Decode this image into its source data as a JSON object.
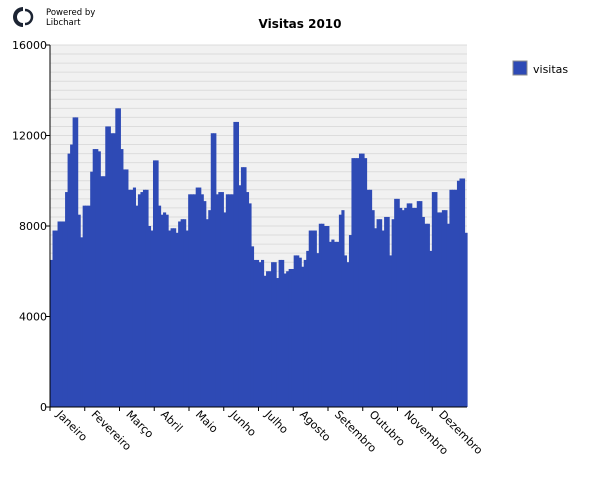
{
  "branding": {
    "line1": "Powered by",
    "line2": "Libchart"
  },
  "chart_data": {
    "type": "bar",
    "title": "Visitas 2010",
    "xlabel": "",
    "ylabel": "",
    "ylim": [
      0,
      16000
    ],
    "yticks": [
      0,
      4000,
      8000,
      12000,
      16000
    ],
    "months": [
      "Janeiro",
      "Fevereiro",
      "Março",
      "Abril",
      "Maio",
      "Junho",
      "Julho",
      "Agosto",
      "Setembro",
      "Outubro",
      "Novembro",
      "Dezembro"
    ],
    "legend": "top-right",
    "grid": true,
    "colors": {
      "bar": "#2e4ab5",
      "grid": "#dcdcdc",
      "background": "#f1f1f1",
      "legend_swatch": "#2e4ab5"
    },
    "series": [
      {
        "name": "visitas",
        "values": [
          6500,
          7800,
          7800,
          8200,
          8200,
          8200,
          9500,
          11200,
          11600,
          12800,
          12800,
          8500,
          7500,
          8900,
          8900,
          8900,
          10400,
          11400,
          11400,
          11300,
          10200,
          10200,
          12400,
          12400,
          12100,
          12100,
          13200,
          13200,
          11400,
          10500,
          10500,
          9600,
          9600,
          9700,
          8900,
          9400,
          9500,
          9600,
          9600,
          8000,
          7800,
          10900,
          10900,
          8900,
          8500,
          8600,
          8500,
          7800,
          7900,
          7900,
          7700,
          8200,
          8300,
          8300,
          7800,
          9400,
          9400,
          9400,
          9700,
          9700,
          9400,
          9100,
          8300,
          8700,
          12100,
          12100,
          9400,
          9500,
          9500,
          8600,
          9400,
          9400,
          9400,
          12600,
          12600,
          9800,
          10600,
          10600,
          9500,
          9000,
          7100,
          6500,
          6500,
          6400,
          6500,
          5800,
          6000,
          6000,
          6400,
          6400,
          5700,
          6500,
          6500,
          5900,
          6000,
          6100,
          6100,
          6700,
          6700,
          6600,
          6200,
          6500,
          6900,
          7800,
          7800,
          7800,
          6800,
          8100,
          8100,
          8000,
          8000,
          7300,
          7400,
          7300,
          7300,
          8500,
          8700,
          6700,
          6400,
          7600,
          11000,
          11000,
          11000,
          11200,
          11200,
          11000,
          9600,
          9600,
          8700,
          7900,
          8300,
          8300,
          7800,
          8400,
          8400,
          6700,
          8300,
          9200,
          9200,
          8800,
          8700,
          8800,
          9000,
          9000,
          8800,
          8800,
          9100,
          9100,
          8400,
          8100,
          8100,
          6900,
          9500,
          9500,
          8600,
          8600,
          8700,
          8700,
          8100,
          9600,
          9600,
          9600,
          10000,
          10100,
          10100,
          7700
        ]
      }
    ]
  }
}
